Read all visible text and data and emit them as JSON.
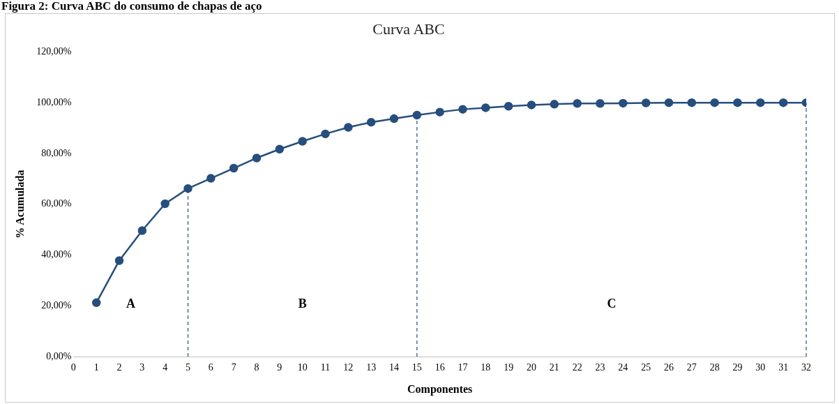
{
  "chart_data": {
    "type": "line",
    "title": "Curva ABC",
    "xlabel": "Componentes",
    "ylabel": "% Acumulada",
    "x": [
      1,
      2,
      3,
      4,
      5,
      6,
      7,
      8,
      9,
      10,
      11,
      12,
      13,
      14,
      15,
      16,
      17,
      18,
      19,
      20,
      21,
      22,
      23,
      24,
      25,
      26,
      27,
      28,
      29,
      30,
      31,
      32
    ],
    "series": [
      {
        "color": "#264f7d",
        "values": [
          21.2,
          37.8,
          49.6,
          60.2,
          66.2,
          70.2,
          74.2,
          78.2,
          81.7,
          84.8,
          87.7,
          90.3,
          92.3,
          93.7,
          95.1,
          96.3,
          97.4,
          98.0,
          98.6,
          99.1,
          99.4,
          99.7,
          99.7,
          99.8,
          99.9,
          100,
          100,
          100,
          100,
          100,
          100,
          100
        ]
      }
    ],
    "xlim": [
      0,
      32
    ],
    "xticks": [
      0,
      1,
      2,
      3,
      4,
      5,
      6,
      7,
      8,
      9,
      10,
      11,
      12,
      13,
      14,
      15,
      16,
      17,
      18,
      19,
      20,
      21,
      22,
      23,
      24,
      25,
      26,
      27,
      28,
      29,
      30,
      31,
      32
    ],
    "ylim": [
      0,
      120
    ],
    "yticks": [
      {
        "value": 0,
        "label": "0,00%"
      },
      {
        "value": 20,
        "label": "20,00%"
      },
      {
        "value": 40,
        "label": "40,00%"
      },
      {
        "value": 60,
        "label": "60,00%"
      },
      {
        "value": 80,
        "label": "80,00%"
      },
      {
        "value": 100,
        "label": "100,00%"
      },
      {
        "value": 120,
        "label": "120,00%"
      }
    ],
    "ref_lines": [
      {
        "axis": "x",
        "value": 5,
        "color": "#264f7d",
        "line_style": "dashed"
      },
      {
        "axis": "x",
        "value": 15,
        "color": "#264f7d",
        "line_style": "dashed"
      },
      {
        "axis": "x",
        "value": 32,
        "color": "#264f7d",
        "line_style": "dashed"
      }
    ],
    "annotations": [
      "Figura 2: Curva ABC do consumo de chapas de aço",
      "A",
      "B",
      "C"
    ],
    "grid": false,
    "legend": false,
    "marker": "circle",
    "line_style": "solid"
  }
}
